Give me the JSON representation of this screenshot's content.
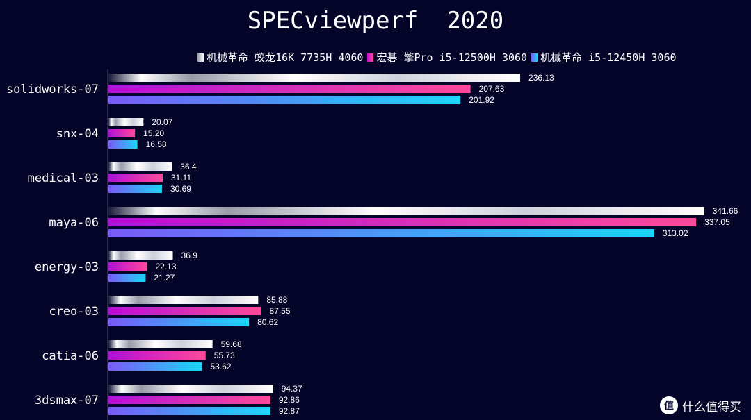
{
  "chart_data": {
    "type": "bar",
    "orientation": "horizontal",
    "title": "SPECviewperf  2020",
    "categories": [
      "solidworks-07",
      "snx-04",
      "medical-03",
      "maya-06",
      "energy-03",
      "creo-03",
      "catia-06",
      "3dsmax-07"
    ],
    "series": [
      {
        "name": "机械革命 蛟龙16K 7735H 4060",
        "values": [
          236.13,
          20.07,
          36.4,
          341.66,
          36.9,
          85.88,
          59.68,
          94.37
        ],
        "labels": [
          "236.13",
          "20.07",
          "36.4",
          "341.66",
          "36.9",
          "85.88",
          "59.68",
          "94.37"
        ],
        "color": "#ffffff"
      },
      {
        "name": "宏碁 擎Pro i5-12500H 3060",
        "values": [
          207.63,
          15.2,
          31.11,
          337.05,
          22.13,
          87.55,
          55.73,
          92.86
        ],
        "labels": [
          "207.63",
          "15.20",
          "31.11",
          "337.05",
          "22.13",
          "87.55",
          "55.73",
          "92.86"
        ],
        "color": "#ff3c9a"
      },
      {
        "name": "机械革命 i5-12450H 3060",
        "values": [
          201.92,
          16.58,
          30.69,
          313.02,
          21.27,
          80.62,
          53.62,
          92.87
        ],
        "labels": [
          "201.92",
          "16.58",
          "30.69",
          "313.02",
          "21.27",
          "80.62",
          "53.62",
          "92.87"
        ],
        "color": "#1ad6f6"
      }
    ],
    "xlim": [
      0,
      345
    ],
    "grid": false,
    "legend_position": "top"
  },
  "watermark": {
    "icon": "值",
    "text": "什么值得买"
  }
}
